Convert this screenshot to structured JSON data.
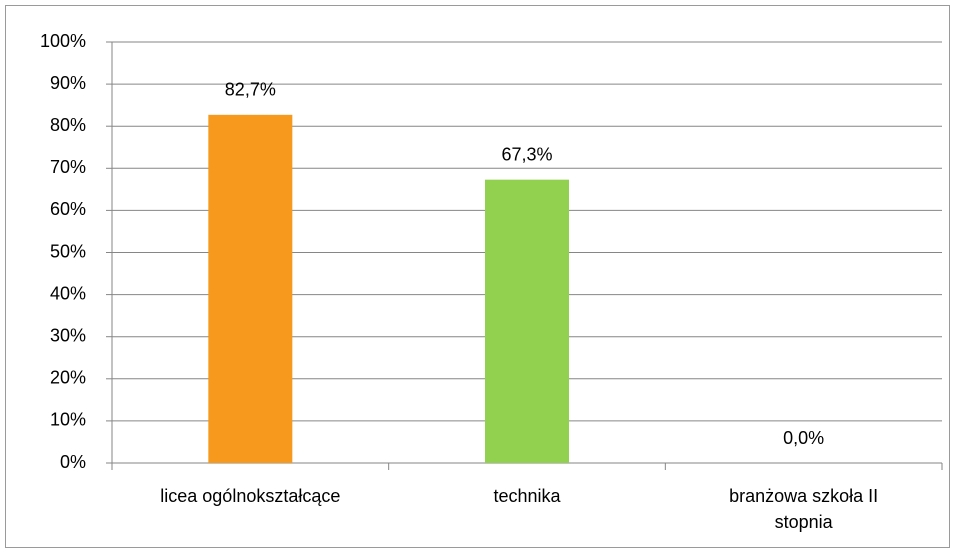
{
  "chart_data": {
    "type": "bar",
    "categories": [
      "licea ogólnokształcące",
      "technika",
      "branżowa szkoła II stopnia"
    ],
    "values": [
      82.7,
      67.3,
      0.0
    ],
    "value_labels": [
      "82,7%",
      "67,3%",
      "0,0%"
    ],
    "colors": [
      "#f7991d",
      "#92d050",
      "#4f81bd"
    ],
    "ylim": [
      0,
      100
    ],
    "yticks": [
      {
        "value": 0,
        "label": "0%"
      },
      {
        "value": 10,
        "label": "10%"
      },
      {
        "value": 20,
        "label": "20%"
      },
      {
        "value": 30,
        "label": "30%"
      },
      {
        "value": 40,
        "label": "40%"
      },
      {
        "value": 50,
        "label": "50%"
      },
      {
        "value": 60,
        "label": "60%"
      },
      {
        "value": 70,
        "label": "70%"
      },
      {
        "value": 80,
        "label": "80%"
      },
      {
        "value": 90,
        "label": "90%"
      },
      {
        "value": 100,
        "label": "100%"
      }
    ],
    "grid": true
  }
}
